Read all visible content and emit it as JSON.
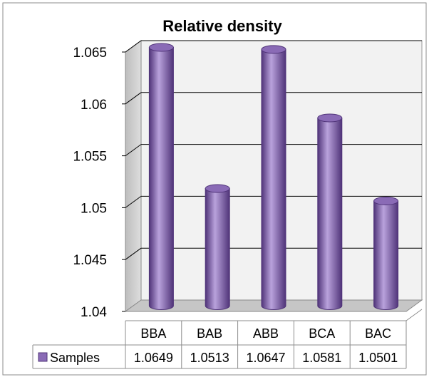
{
  "chart_data": {
    "type": "bar",
    "title": "Relative density",
    "categories": [
      "BBA",
      "BAB",
      "ABB",
      "BCA",
      "BAC"
    ],
    "series": [
      {
        "name": "Samples",
        "values": [
          1.0649,
          1.0513,
          1.0647,
          1.0581,
          1.0501
        ]
      }
    ],
    "value_labels": [
      "1.0649",
      "1.0513",
      "1.0647",
      "1.0581",
      "1.0501"
    ],
    "yticks": [
      "1.04",
      "1.045",
      "1.05",
      "1.055",
      "1.06",
      "1.065"
    ],
    "ylim": [
      1.04,
      1.065
    ],
    "bar_shape": "3d-cylinder",
    "grid": true,
    "legend_placement": "data-table-bottom",
    "colors": {
      "bar": "#8a6bb6",
      "bar_dark": "#503479",
      "bar_light": "#b9a2dc",
      "wall": "#f2f2f2",
      "floor": "#c6c6c6",
      "side_wall": "#c9c9c9",
      "grid": "#000000"
    }
  }
}
